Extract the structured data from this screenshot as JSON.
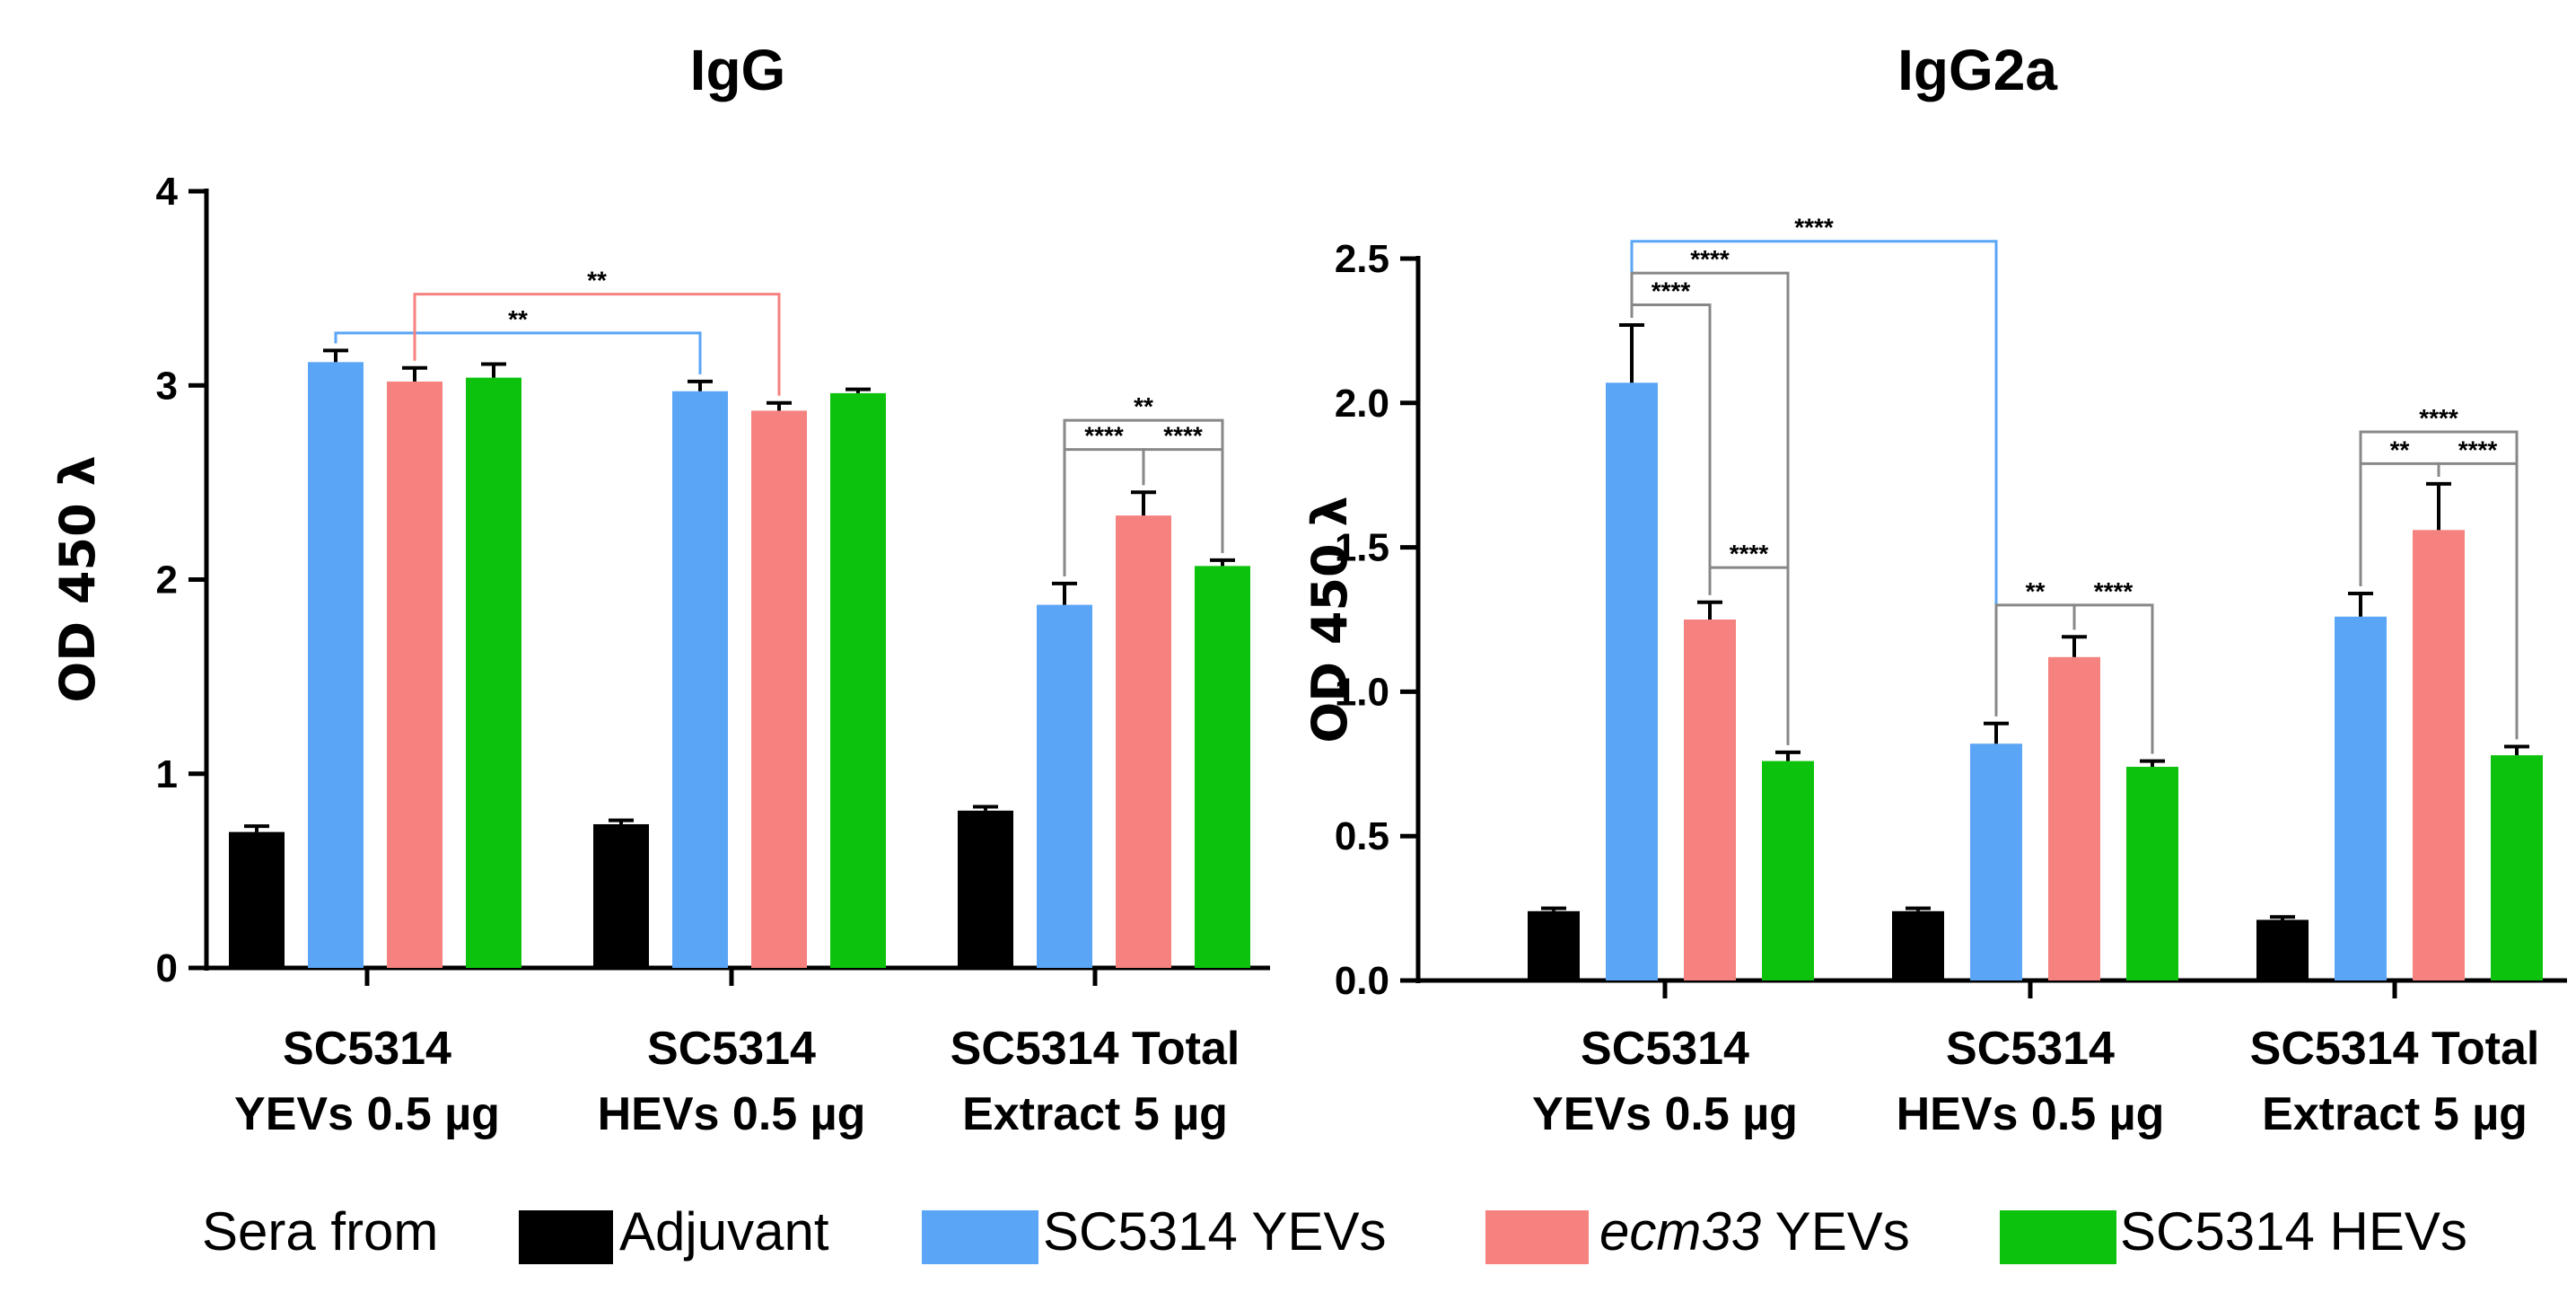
{
  "legend": {
    "prefix": "Sera from",
    "items": [
      {
        "label": "Adjuvant",
        "italic": "",
        "color": "#000000"
      },
      {
        "label": " YEVs",
        "italic": "",
        "color": "#5aa5f5",
        "full": "SC5314 YEVs"
      },
      {
        "label": " YEVs",
        "italic": "ecm33",
        "color": "#f5827f"
      },
      {
        "label": "SC5314 HEVs",
        "italic": "",
        "color": "#0dc20d"
      }
    ]
  },
  "chart_data": [
    {
      "type": "bar",
      "title": "IgG",
      "ylabel": "OD 450 λ",
      "xlabel": "",
      "ylim": [
        0,
        4
      ],
      "yticks": [
        "0",
        "1",
        "2",
        "3",
        "4"
      ],
      "yticks_values": [
        0,
        1,
        2,
        3,
        4
      ],
      "categories": [
        [
          "SC5314",
          "YEVs 0.5 µg"
        ],
        [
          "SC5314",
          "HEVs 0.5 µg"
        ],
        [
          "SC5314 Total",
          "Extract 5 µg"
        ]
      ],
      "series": [
        {
          "name": "Adjuvant",
          "values": [
            0.7,
            0.74,
            0.81
          ],
          "errors": [
            0.03,
            0.02,
            0.02
          ]
        },
        {
          "name": "SC5314 YEVs",
          "values": [
            3.12,
            2.97,
            1.87
          ],
          "errors": [
            0.06,
            0.05,
            0.11
          ]
        },
        {
          "name": "ecm33 YEVs",
          "values": [
            3.02,
            2.87,
            2.33
          ],
          "errors": [
            0.07,
            0.04,
            0.12
          ]
        },
        {
          "name": "SC5314 HEVs",
          "values": [
            3.04,
            2.96,
            2.07
          ],
          "errors": [
            0.07,
            0.02,
            0.03
          ]
        }
      ],
      "grid": false,
      "significance": [
        {
          "from": [
            0,
            1
          ],
          "to": [
            1,
            1
          ],
          "label": "**",
          "color": "#5aa5f5",
          "y": 3.27
        },
        {
          "from": [
            0,
            2
          ],
          "to": [
            1,
            2
          ],
          "label": "**",
          "color": "#f5827f",
          "y": 3.47
        },
        {
          "from": [
            2,
            1
          ],
          "to": [
            2,
            2
          ],
          "label": "****",
          "color": "#888888",
          "y": 2.67
        },
        {
          "from": [
            2,
            2
          ],
          "to": [
            2,
            3
          ],
          "label": "****",
          "color": "#888888",
          "y": 2.67
        },
        {
          "from": [
            2,
            1
          ],
          "to": [
            2,
            3
          ],
          "label": "**",
          "color": "#888888",
          "y": 2.82
        }
      ]
    },
    {
      "type": "bar",
      "title": "IgG2a",
      "ylabel": "OD 450 λ",
      "xlabel": "",
      "ylim": [
        0,
        2.5
      ],
      "yticks": [
        "0.0",
        "0.5",
        "1.0",
        "1.5",
        "2.0",
        "2.5"
      ],
      "yticks_values": [
        0,
        0.5,
        1.0,
        1.5,
        2.0,
        2.5
      ],
      "categories": [
        [
          "SC5314",
          "YEVs 0.5 µg"
        ],
        [
          "SC5314",
          "HEVs 0.5 µg"
        ],
        [
          "SC5314 Total",
          "Extract 5 µg"
        ]
      ],
      "series": [
        {
          "name": "Adjuvant",
          "values": [
            0.24,
            0.24,
            0.21
          ],
          "errors": [
            0.01,
            0.01,
            0.01
          ]
        },
        {
          "name": "SC5314 YEVs",
          "values": [
            2.07,
            0.82,
            1.26
          ],
          "errors": [
            0.2,
            0.07,
            0.08
          ]
        },
        {
          "name": "ecm33 YEVs",
          "values": [
            1.25,
            1.12,
            1.56
          ],
          "errors": [
            0.06,
            0.07,
            0.16
          ]
        },
        {
          "name": "SC5314 HEVs",
          "values": [
            0.76,
            0.74,
            0.78
          ],
          "errors": [
            0.03,
            0.02,
            0.03
          ]
        }
      ],
      "grid": false,
      "significance": [
        {
          "from": [
            0,
            1
          ],
          "to": [
            1,
            1
          ],
          "label": "****",
          "color": "#5aa5f5",
          "y": 2.56
        },
        {
          "from": [
            0,
            1
          ],
          "to": [
            0,
            3
          ],
          "label": "****",
          "color": "#888888",
          "y": 2.45
        },
        {
          "from": [
            0,
            1
          ],
          "to": [
            0,
            2
          ],
          "label": "****",
          "color": "#888888",
          "y": 2.34
        },
        {
          "from": [
            0,
            2
          ],
          "to": [
            0,
            3
          ],
          "label": "****",
          "color": "#888888",
          "y": 1.43
        },
        {
          "from": [
            1,
            1
          ],
          "to": [
            1,
            2
          ],
          "label": "**",
          "color": "#888888",
          "y": 1.3
        },
        {
          "from": [
            1,
            2
          ],
          "to": [
            1,
            3
          ],
          "label": "****",
          "color": "#888888",
          "y": 1.3
        },
        {
          "from": [
            2,
            1
          ],
          "to": [
            2,
            2
          ],
          "label": "**",
          "color": "#888888",
          "y": 1.79
        },
        {
          "from": [
            2,
            2
          ],
          "to": [
            2,
            3
          ],
          "label": "****",
          "color": "#888888",
          "y": 1.79
        },
        {
          "from": [
            2,
            1
          ],
          "to": [
            2,
            3
          ],
          "label": "****",
          "color": "#888888",
          "y": 1.9
        }
      ]
    }
  ]
}
